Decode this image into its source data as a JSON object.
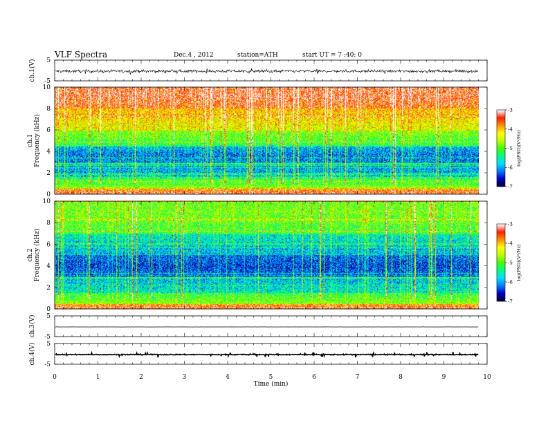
{
  "header": {
    "title": "VLF Spectra",
    "date": "Dec.4 , 2012",
    "station": "station=ATH",
    "start": "start UT = 7 :40: 0"
  },
  "colors": {
    "colormap": [
      "#00003a",
      "#0000c8",
      "#0080ff",
      "#00e0ff",
      "#00ff80",
      "#40ff00",
      "#c0ff00",
      "#ffff00",
      "#ff9000",
      "#ff2000",
      "#ffffff"
    ],
    "waveform": "#000000"
  },
  "chart_data": [
    {
      "type": "line",
      "panel": "ch1-waveform",
      "ylabel": "ch.1(V)",
      "yticks": [
        "5",
        "-5"
      ],
      "ylim": [
        -5,
        5
      ],
      "x_range_min": [
        0,
        9.8
      ],
      "description_values": "noisy waveform oscillating roughly between -1.5 and 1 V"
    },
    {
      "type": "heatmap",
      "panel": "ch1-spectrogram",
      "ylabel_top": "ch.1",
      "ylabel": "Frequency (kHz)",
      "yticks": [
        "0",
        "2",
        "4",
        "6",
        "8",
        "10"
      ],
      "ylim": [
        0,
        10
      ],
      "x_range_min": [
        0,
        9.8
      ],
      "colorbar": {
        "label": "log(PSD)(V²/Hz)",
        "ticks": [
          "-3",
          "-4",
          "-5",
          "-6",
          "-7"
        ],
        "range": [
          -7,
          -3
        ]
      },
      "band_levels": [
        {
          "f_khz": [
            0,
            0.5
          ],
          "level": -3.4
        },
        {
          "f_khz": [
            0.5,
            1.5
          ],
          "level": -5.0
        },
        {
          "f_khz": [
            1.5,
            3
          ],
          "level": -6.0
        },
        {
          "f_khz": [
            3,
            4.5
          ],
          "level": -6.2
        },
        {
          "f_khz": [
            4.5,
            6
          ],
          "level": -5.0
        },
        {
          "f_khz": [
            6,
            8
          ],
          "level": -4.2
        },
        {
          "f_khz": [
            8,
            10
          ],
          "level": -3.4
        }
      ]
    },
    {
      "type": "heatmap",
      "panel": "ch2-spectrogram",
      "ylabel_top": "ch.2",
      "ylabel": "Frequency (kHz)",
      "yticks": [
        "0",
        "2",
        "4",
        "6",
        "8",
        "10"
      ],
      "ylim": [
        0,
        10
      ],
      "x_range_min": [
        0,
        9.8
      ],
      "colorbar": {
        "label": "log(PSD)(V²/Hz)",
        "ticks": [
          "-3",
          "-4",
          "-5",
          "-6",
          "-7"
        ],
        "range": [
          -7,
          -3
        ]
      },
      "band_levels": [
        {
          "f_khz": [
            0,
            0.5
          ],
          "level": -3.6
        },
        {
          "f_khz": [
            0.5,
            1.5
          ],
          "level": -5.0
        },
        {
          "f_khz": [
            1.5,
            3
          ],
          "level": -5.8
        },
        {
          "f_khz": [
            3,
            5
          ],
          "level": -6.4
        },
        {
          "f_khz": [
            5,
            7
          ],
          "level": -5.8
        },
        {
          "f_khz": [
            7,
            10
          ],
          "level": -4.9
        }
      ]
    },
    {
      "type": "line",
      "panel": "ch3-waveform",
      "ylabel": "ch.3(V)",
      "yticks": [
        "5",
        "-5"
      ],
      "ylim": [
        -5,
        5
      ],
      "x_range_min": [
        0,
        9.8
      ],
      "description_values": "flat line near 0 V"
    },
    {
      "type": "line",
      "panel": "ch4-waveform",
      "ylabel": "ch.4(V)",
      "yticks": [
        "5",
        "-5"
      ],
      "ylim": [
        -5,
        5
      ],
      "x_range_min": [
        0,
        9.8
      ],
      "description_values": "thick flat line near 0 V"
    }
  ],
  "xaxis": {
    "label": "Time (min)",
    "ticks": [
      "0",
      "1",
      "2",
      "3",
      "4",
      "5",
      "6",
      "7",
      "8",
      "9",
      "10"
    ],
    "xlim": [
      0,
      10
    ]
  }
}
